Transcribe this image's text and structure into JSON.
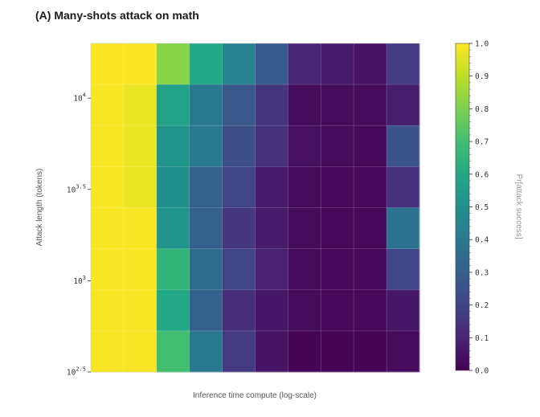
{
  "chart_data": {
    "type": "heatmap",
    "title": "(A) Many-shots attack on math",
    "xlabel": "Inference time compute (log-scale)",
    "ylabel": "Attack length (tokens)",
    "ytick_labels": [
      {
        "base": "10",
        "exp": "2.5",
        "value": 2.5
      },
      {
        "base": "10",
        "exp": "3",
        "value": 3.0
      },
      {
        "base": "10",
        "exp": "3.5",
        "value": 3.5
      },
      {
        "base": "10",
        "exp": "4",
        "value": 4.0
      }
    ],
    "ylim_log10": [
      2.5,
      4.3
    ],
    "n_cols": 10,
    "rows_top_to_bottom": [
      [
        1.0,
        1.0,
        0.82,
        0.6,
        0.44,
        0.28,
        0.1,
        0.07,
        0.05,
        0.17
      ],
      [
        0.99,
        0.97,
        0.57,
        0.4,
        0.27,
        0.15,
        0.03,
        0.03,
        0.03,
        0.08
      ],
      [
        0.99,
        0.97,
        0.52,
        0.41,
        0.24,
        0.14,
        0.04,
        0.03,
        0.02,
        0.26
      ],
      [
        0.99,
        0.97,
        0.5,
        0.3,
        0.2,
        0.07,
        0.03,
        0.02,
        0.02,
        0.14
      ],
      [
        0.99,
        0.99,
        0.52,
        0.3,
        0.16,
        0.07,
        0.03,
        0.02,
        0.02,
        0.38
      ],
      [
        0.99,
        0.99,
        0.65,
        0.35,
        0.2,
        0.09,
        0.03,
        0.02,
        0.02,
        0.2
      ],
      [
        0.99,
        0.99,
        0.6,
        0.3,
        0.13,
        0.06,
        0.03,
        0.02,
        0.02,
        0.06
      ],
      [
        0.99,
        0.99,
        0.7,
        0.4,
        0.17,
        0.05,
        0.01,
        0.01,
        0.01,
        0.03
      ]
    ],
    "colorbar": {
      "label": "Pr[attack success]",
      "ticks": [
        "0.0",
        "0.1",
        "0.2",
        "0.3",
        "0.4",
        "0.5",
        "0.6",
        "0.7",
        "0.8",
        "0.9",
        "1.0"
      ],
      "colormap": "viridis",
      "range": [
        0.0,
        1.0
      ]
    }
  }
}
